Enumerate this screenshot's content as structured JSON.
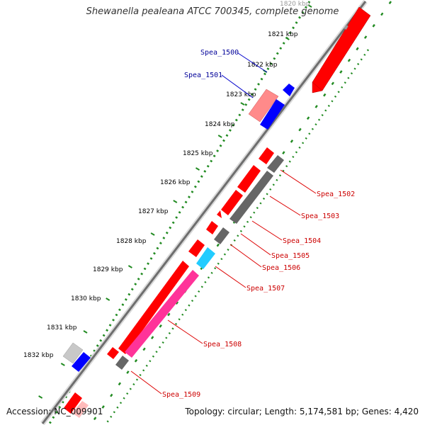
{
  "title": "Shewanella pealeana ATCC 700345, complete genome",
  "footer": {
    "accession": "Accession: NC_009901",
    "summary": "Topology: circular; Length: 5,174,581 bp; Genes: 4,420"
  },
  "colors": {
    "red": "#ff0000",
    "dark_red": "#b30000",
    "pink": "#ff3399",
    "salmon": "#ff8080",
    "blue": "#0000ff",
    "cyan": "#22ccff",
    "gray": "#666666",
    "light_gray": "#c8c8c8",
    "green": "#228b22",
    "label_red": "#cc0000",
    "label_blue": "#000099",
    "tick_text": "#000000"
  },
  "ticks": [
    {
      "label": "1820 kbp",
      "faded": true
    },
    {
      "label": "1821 kbp"
    },
    {
      "label": "1822 kbp"
    },
    {
      "label": "1823 kbp"
    },
    {
      "label": "1824 kbp"
    },
    {
      "label": "1825 kbp"
    },
    {
      "label": "1826 kbp"
    },
    {
      "label": "1827 kbp"
    },
    {
      "label": "1828 kbp"
    },
    {
      "label": "1829 kbp"
    },
    {
      "label": "1830 kbp"
    },
    {
      "label": "1831 kbp"
    },
    {
      "label": "1832 kbp"
    }
  ],
  "gene_labels": [
    {
      "name": "Spea_1500",
      "color": "blue"
    },
    {
      "name": "Spea_1501",
      "color": "blue"
    },
    {
      "name": "Spea_1502",
      "color": "red"
    },
    {
      "name": "Spea_1503",
      "color": "red"
    },
    {
      "name": "Spea_1504",
      "color": "red"
    },
    {
      "name": "Spea_1505",
      "color": "red"
    },
    {
      "name": "Spea_1506",
      "color": "red"
    },
    {
      "name": "Spea_1507",
      "color": "red"
    },
    {
      "name": "Spea_1508",
      "color": "red"
    },
    {
      "name": "Spea_1509",
      "color": "red"
    }
  ]
}
